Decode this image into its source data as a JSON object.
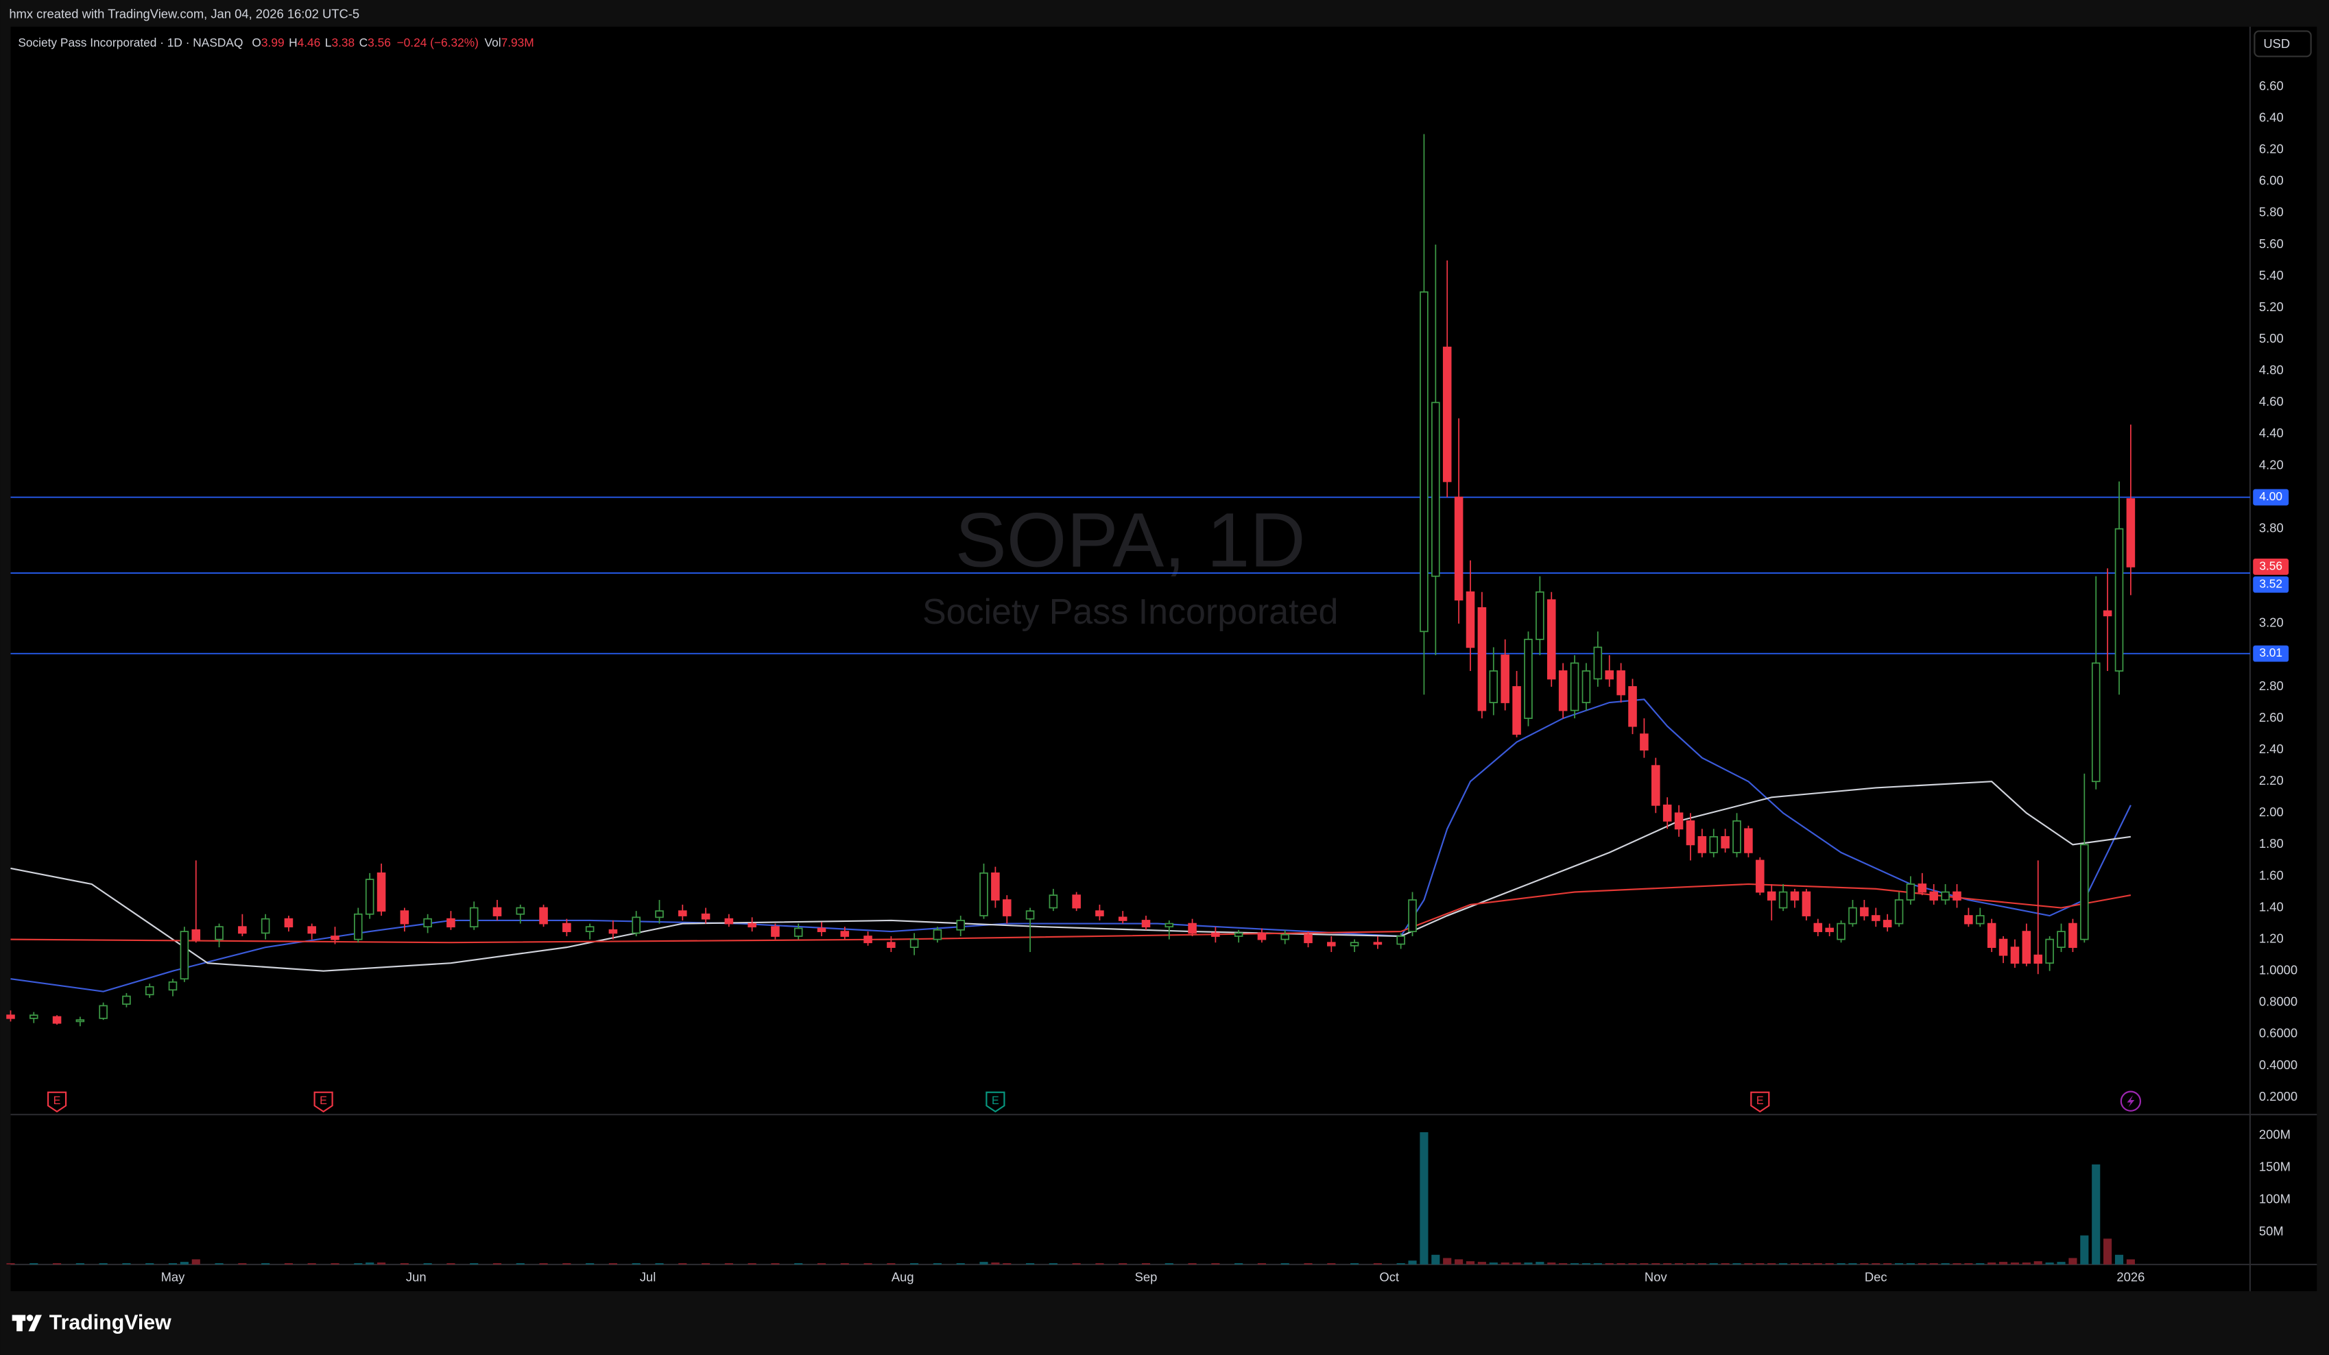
{
  "header": {
    "caption": "hmx created with TradingView.com, Jan 04, 2026 16:02 UTC-5"
  },
  "footer": {
    "brand": "TradingView"
  },
  "currency": "USD",
  "chart_data": {
    "type": "candlestick",
    "watermark": {
      "title": "SOPA, 1D",
      "subtitle": "Society Pass Incorporated"
    },
    "legend": {
      "symbol": "Society Pass Incorporated · 1D · NASDAQ",
      "fields": [
        {
          "label": "O",
          "value": "3.99"
        },
        {
          "label": "H",
          "value": "4.46"
        },
        {
          "label": "L",
          "value": "3.38"
        },
        {
          "label": "C",
          "value": "3.56"
        }
      ],
      "change": "−0.24 (−6.32%)",
      "volume": {
        "label": "Vol",
        "value": "7.93M"
      }
    },
    "up_color": "#3d9a46",
    "down_color": "#f23645",
    "volume_up_color": "#0d5b66",
    "volume_down_color": "#7a1e27",
    "xlim": [
      0,
      193.3
    ],
    "xticks": [
      {
        "value": 14,
        "label": "May"
      },
      {
        "value": 35,
        "label": "Jun"
      },
      {
        "value": 55,
        "label": "Jul"
      },
      {
        "value": 77,
        "label": "Aug"
      },
      {
        "value": 98,
        "label": "Sep"
      },
      {
        "value": 119,
        "label": "Oct"
      },
      {
        "value": 142,
        "label": "Nov"
      },
      {
        "value": 161,
        "label": "Dec"
      },
      {
        "value": 183,
        "label": "2026"
      }
    ],
    "ylim": [
      0.1,
      6.98
    ],
    "yticks": [
      {
        "value": 6.6,
        "label": "6.60"
      },
      {
        "value": 6.4,
        "label": "6.40"
      },
      {
        "value": 6.2,
        "label": "6.20"
      },
      {
        "value": 6.0,
        "label": "6.00"
      },
      {
        "value": 5.8,
        "label": "5.80"
      },
      {
        "value": 5.6,
        "label": "5.60"
      },
      {
        "value": 5.4,
        "label": "5.40"
      },
      {
        "value": 5.2,
        "label": "5.20"
      },
      {
        "value": 5.0,
        "label": "5.00"
      },
      {
        "value": 4.8,
        "label": "4.80"
      },
      {
        "value": 4.6,
        "label": "4.60"
      },
      {
        "value": 4.4,
        "label": "4.40"
      },
      {
        "value": 4.2,
        "label": "4.20"
      },
      {
        "value": 3.8,
        "label": "3.80"
      },
      {
        "value": 3.2,
        "label": "3.20"
      },
      {
        "value": 2.8,
        "label": "2.80"
      },
      {
        "value": 2.6,
        "label": "2.60"
      },
      {
        "value": 2.4,
        "label": "2.40"
      },
      {
        "value": 2.2,
        "label": "2.20"
      },
      {
        "value": 2.0,
        "label": "2.00"
      },
      {
        "value": 1.8,
        "label": "1.80"
      },
      {
        "value": 1.6,
        "label": "1.60"
      },
      {
        "value": 1.4,
        "label": "1.40"
      },
      {
        "value": 1.2,
        "label": "1.20"
      },
      {
        "value": 1.0,
        "label": "1.0000"
      },
      {
        "value": 0.8,
        "label": "0.8000"
      },
      {
        "value": 0.6,
        "label": "0.6000"
      },
      {
        "value": 0.4,
        "label": "0.4000"
      },
      {
        "value": 0.2,
        "label": "0.2000"
      }
    ],
    "vlim": [
      0,
      230000000
    ],
    "vticks": [
      {
        "value": 200000000,
        "label": "200M"
      },
      {
        "value": 150000000,
        "label": "150M"
      },
      {
        "value": 100000000,
        "label": "100M"
      },
      {
        "value": 50000000,
        "label": "50M"
      }
    ],
    "hlines": [
      {
        "value": 4.0,
        "label": "4.00"
      },
      {
        "value": 3.52,
        "label": "3.52"
      },
      {
        "value": 3.01,
        "label": "3.01"
      }
    ],
    "hline_color": "#2962ff",
    "last_price": {
      "value": 3.56,
      "label": "3.56"
    },
    "events": [
      {
        "x": 4,
        "label": "E",
        "color": "#f23645"
      },
      {
        "x": 27,
        "label": "E",
        "color": "#f23645"
      },
      {
        "x": 85,
        "label": "E",
        "color": "#089981"
      },
      {
        "x": 151,
        "label": "E",
        "color": "#f23645"
      },
      {
        "x": 183,
        "color": "#9c27b0"
      }
    ],
    "moving_averages": [
      {
        "color": "#3b5bdb",
        "x": [
          0,
          8,
          14,
          22,
          31,
          38,
          50,
          63,
          76,
          86,
          99,
          112,
          120,
          122,
          124,
          126,
          130,
          134,
          138,
          141,
          143,
          146,
          150,
          153,
          158,
          164,
          169,
          176,
          179,
          183
        ],
        "values": [
          0.95,
          0.87,
          1.0,
          1.15,
          1.25,
          1.32,
          1.32,
          1.3,
          1.25,
          1.3,
          1.3,
          1.25,
          1.22,
          1.45,
          1.9,
          2.2,
          2.45,
          2.6,
          2.7,
          2.72,
          2.55,
          2.35,
          2.2,
          2.0,
          1.75,
          1.55,
          1.45,
          1.35,
          1.45,
          2.05
        ]
      },
      {
        "color": "#d1d4dc",
        "x": [
          0,
          7,
          12,
          17,
          27,
          38,
          48,
          58,
          76,
          89,
          102,
          120,
          124,
          131,
          138,
          144,
          152,
          161,
          171,
          174,
          178,
          183
        ],
        "values": [
          1.65,
          1.55,
          1.3,
          1.05,
          1.0,
          1.05,
          1.15,
          1.3,
          1.32,
          1.28,
          1.25,
          1.22,
          1.35,
          1.55,
          1.75,
          1.95,
          2.1,
          2.16,
          2.2,
          2.0,
          1.8,
          1.85
        ]
      },
      {
        "color": "#e53935",
        "x": [
          0,
          38,
          76,
          120,
          126,
          135,
          150,
          161,
          170,
          177,
          183
        ],
        "values": [
          1.2,
          1.18,
          1.2,
          1.25,
          1.42,
          1.5,
          1.55,
          1.52,
          1.45,
          1.4,
          1.48
        ]
      }
    ],
    "candles": [
      [
        0,
        0.72,
        0.75,
        0.68,
        0.7,
        2000000
      ],
      [
        2,
        0.7,
        0.74,
        0.67,
        0.72,
        2000000
      ],
      [
        4,
        0.71,
        0.72,
        0.66,
        0.67,
        2000000
      ],
      [
        6,
        0.68,
        0.71,
        0.65,
        0.69,
        2000000
      ],
      [
        8,
        0.7,
        0.8,
        0.69,
        0.78,
        2000000
      ],
      [
        10,
        0.79,
        0.86,
        0.77,
        0.84,
        2000000
      ],
      [
        12,
        0.85,
        0.92,
        0.83,
        0.9,
        2000000
      ],
      [
        14,
        0.88,
        0.95,
        0.84,
        0.93,
        2000000
      ],
      [
        15,
        0.95,
        1.28,
        0.93,
        1.25,
        4000000
      ],
      [
        16,
        1.26,
        1.7,
        1.18,
        1.2,
        8000000
      ],
      [
        18,
        1.2,
        1.3,
        1.15,
        1.28,
        2000000
      ],
      [
        20,
        1.28,
        1.36,
        1.22,
        1.24,
        2000000
      ],
      [
        22,
        1.24,
        1.36,
        1.2,
        1.33,
        2000000
      ],
      [
        24,
        1.33,
        1.35,
        1.25,
        1.28,
        2000000
      ],
      [
        26,
        1.28,
        1.3,
        1.2,
        1.24,
        2000000
      ],
      [
        28,
        1.22,
        1.28,
        1.17,
        1.2,
        2000000
      ],
      [
        30,
        1.2,
        1.4,
        1.18,
        1.36,
        2000000
      ],
      [
        31,
        1.36,
        1.62,
        1.33,
        1.58,
        3000000
      ],
      [
        32,
        1.62,
        1.68,
        1.35,
        1.38,
        3000000
      ],
      [
        34,
        1.38,
        1.4,
        1.25,
        1.3,
        2000000
      ],
      [
        36,
        1.28,
        1.36,
        1.24,
        1.33,
        2000000
      ],
      [
        38,
        1.33,
        1.38,
        1.26,
        1.28,
        2000000
      ],
      [
        40,
        1.28,
        1.44,
        1.26,
        1.4,
        2000000
      ],
      [
        42,
        1.4,
        1.45,
        1.32,
        1.35,
        2000000
      ],
      [
        44,
        1.36,
        1.42,
        1.3,
        1.4,
        2000000
      ],
      [
        46,
        1.4,
        1.42,
        1.28,
        1.3,
        2000000
      ],
      [
        48,
        1.3,
        1.33,
        1.22,
        1.25,
        2000000
      ],
      [
        50,
        1.25,
        1.3,
        1.2,
        1.28,
        2000000
      ],
      [
        52,
        1.26,
        1.32,
        1.2,
        1.24,
        2000000
      ],
      [
        54,
        1.24,
        1.38,
        1.22,
        1.34,
        2000000
      ],
      [
        56,
        1.34,
        1.45,
        1.3,
        1.38,
        2000000
      ],
      [
        58,
        1.38,
        1.42,
        1.32,
        1.35,
        2000000
      ],
      [
        60,
        1.36,
        1.4,
        1.3,
        1.33,
        2000000
      ],
      [
        62,
        1.33,
        1.36,
        1.28,
        1.3,
        2000000
      ],
      [
        64,
        1.3,
        1.34,
        1.25,
        1.28,
        2000000
      ],
      [
        66,
        1.28,
        1.3,
        1.2,
        1.22,
        2000000
      ],
      [
        68,
        1.22,
        1.3,
        1.2,
        1.27,
        2000000
      ],
      [
        70,
        1.27,
        1.31,
        1.22,
        1.25,
        2000000
      ],
      [
        72,
        1.25,
        1.28,
        1.2,
        1.22,
        2000000
      ],
      [
        74,
        1.22,
        1.25,
        1.16,
        1.18,
        2000000
      ],
      [
        76,
        1.18,
        1.22,
        1.12,
        1.15,
        2000000
      ],
      [
        78,
        1.15,
        1.24,
        1.1,
        1.2,
        2000000
      ],
      [
        80,
        1.2,
        1.28,
        1.18,
        1.26,
        2000000
      ],
      [
        82,
        1.26,
        1.35,
        1.22,
        1.32,
        2000000
      ],
      [
        84,
        1.35,
        1.68,
        1.33,
        1.62,
        4000000
      ],
      [
        85,
        1.62,
        1.66,
        1.4,
        1.45,
        3000000
      ],
      [
        86,
        1.45,
        1.48,
        1.3,
        1.35,
        2000000
      ],
      [
        88,
        1.33,
        1.4,
        1.12,
        1.38,
        2000000
      ],
      [
        90,
        1.4,
        1.52,
        1.38,
        1.48,
        2000000
      ],
      [
        92,
        1.48,
        1.5,
        1.38,
        1.4,
        2000000
      ],
      [
        94,
        1.38,
        1.42,
        1.32,
        1.35,
        2000000
      ],
      [
        96,
        1.34,
        1.38,
        1.3,
        1.32,
        2000000
      ],
      [
        98,
        1.32,
        1.35,
        1.26,
        1.28,
        2000000
      ],
      [
        100,
        1.28,
        1.32,
        1.2,
        1.3,
        2000000
      ],
      [
        102,
        1.3,
        1.33,
        1.22,
        1.24,
        2000000
      ],
      [
        104,
        1.24,
        1.28,
        1.18,
        1.22,
        2000000
      ],
      [
        106,
        1.22,
        1.26,
        1.18,
        1.24,
        2000000
      ],
      [
        108,
        1.24,
        1.27,
        1.18,
        1.2,
        2000000
      ],
      [
        110,
        1.2,
        1.26,
        1.17,
        1.23,
        2000000
      ],
      [
        112,
        1.23,
        1.25,
        1.15,
        1.18,
        2000000
      ],
      [
        114,
        1.18,
        1.22,
        1.12,
        1.16,
        2000000
      ],
      [
        116,
        1.16,
        1.2,
        1.12,
        1.18,
        2000000
      ],
      [
        118,
        1.18,
        1.22,
        1.14,
        1.17,
        2000000
      ],
      [
        120,
        1.17,
        1.24,
        1.14,
        1.22,
        2000000
      ],
      [
        121,
        1.25,
        1.5,
        1.22,
        1.45,
        6000000
      ],
      [
        122,
        3.15,
        6.3,
        2.75,
        5.3,
        205000000
      ],
      [
        123,
        3.5,
        5.6,
        3.0,
        4.6,
        15000000
      ],
      [
        124,
        4.95,
        5.5,
        4.0,
        4.1,
        10000000
      ],
      [
        125,
        4.0,
        4.5,
        3.2,
        3.35,
        8000000
      ],
      [
        126,
        3.4,
        3.6,
        2.9,
        3.05,
        5000000
      ],
      [
        127,
        3.3,
        3.4,
        2.6,
        2.65,
        4000000
      ],
      [
        128,
        2.7,
        3.05,
        2.62,
        2.9,
        3000000
      ],
      [
        129,
        3.0,
        3.1,
        2.65,
        2.7,
        3000000
      ],
      [
        130,
        2.8,
        2.9,
        2.48,
        2.5,
        3000000
      ],
      [
        131,
        2.6,
        3.15,
        2.55,
        3.1,
        3000000
      ],
      [
        132,
        3.1,
        3.5,
        3.0,
        3.4,
        4000000
      ],
      [
        133,
        3.35,
        3.4,
        2.8,
        2.85,
        3000000
      ],
      [
        134,
        2.9,
        2.95,
        2.6,
        2.65,
        2000000
      ],
      [
        135,
        2.65,
        3.0,
        2.6,
        2.95,
        2000000
      ],
      [
        136,
        2.7,
        2.95,
        2.65,
        2.9,
        2000000
      ],
      [
        137,
        2.85,
        3.15,
        2.8,
        3.05,
        2000000
      ],
      [
        138,
        2.9,
        3.0,
        2.8,
        2.85,
        2000000
      ],
      [
        139,
        2.9,
        2.95,
        2.7,
        2.75,
        2000000
      ],
      [
        140,
        2.8,
        2.85,
        2.5,
        2.55,
        2000000
      ],
      [
        141,
        2.5,
        2.6,
        2.35,
        2.4,
        2000000
      ],
      [
        142,
        2.3,
        2.35,
        2.0,
        2.05,
        2000000
      ],
      [
        143,
        2.05,
        2.1,
        1.9,
        1.95,
        2000000
      ],
      [
        144,
        2.0,
        2.05,
        1.85,
        1.9,
        2000000
      ],
      [
        145,
        1.95,
        2.0,
        1.7,
        1.8,
        2000000
      ],
      [
        146,
        1.85,
        1.9,
        1.72,
        1.75,
        2000000
      ],
      [
        147,
        1.75,
        1.9,
        1.72,
        1.85,
        2000000
      ],
      [
        148,
        1.85,
        1.9,
        1.75,
        1.78,
        2000000
      ],
      [
        149,
        1.75,
        2.0,
        1.72,
        1.95,
        2000000
      ],
      [
        150,
        1.9,
        1.92,
        1.72,
        1.75,
        2000000
      ],
      [
        151,
        1.7,
        1.72,
        1.48,
        1.5,
        2000000
      ],
      [
        152,
        1.5,
        1.55,
        1.32,
        1.45,
        2000000
      ],
      [
        153,
        1.4,
        1.55,
        1.38,
        1.5,
        2000000
      ],
      [
        154,
        1.5,
        1.52,
        1.4,
        1.45,
        2000000
      ],
      [
        155,
        1.5,
        1.52,
        1.32,
        1.35,
        2000000
      ],
      [
        156,
        1.3,
        1.33,
        1.22,
        1.25,
        2000000
      ],
      [
        157,
        1.27,
        1.3,
        1.22,
        1.25,
        2000000
      ],
      [
        158,
        1.2,
        1.32,
        1.18,
        1.3,
        2000000
      ],
      [
        159,
        1.3,
        1.45,
        1.28,
        1.4,
        2000000
      ],
      [
        160,
        1.4,
        1.45,
        1.32,
        1.35,
        2000000
      ],
      [
        161,
        1.35,
        1.4,
        1.28,
        1.32,
        2000000
      ],
      [
        162,
        1.32,
        1.36,
        1.25,
        1.28,
        2000000
      ],
      [
        163,
        1.3,
        1.5,
        1.28,
        1.45,
        2000000
      ],
      [
        164,
        1.45,
        1.6,
        1.42,
        1.55,
        2000000
      ],
      [
        165,
        1.55,
        1.62,
        1.48,
        1.5,
        2000000
      ],
      [
        166,
        1.5,
        1.55,
        1.42,
        1.45,
        2000000
      ],
      [
        167,
        1.45,
        1.55,
        1.42,
        1.5,
        2000000
      ],
      [
        168,
        1.5,
        1.55,
        1.4,
        1.45,
        2000000
      ],
      [
        169,
        1.35,
        1.4,
        1.28,
        1.3,
        2000000
      ],
      [
        170,
        1.3,
        1.4,
        1.28,
        1.35,
        2000000
      ],
      [
        171,
        1.3,
        1.33,
        1.12,
        1.15,
        3000000
      ],
      [
        172,
        1.2,
        1.22,
        1.05,
        1.1,
        4000000
      ],
      [
        173,
        1.15,
        1.2,
        1.02,
        1.05,
        3000000
      ],
      [
        174,
        1.25,
        1.3,
        1.03,
        1.05,
        3000000
      ],
      [
        175,
        1.1,
        1.7,
        0.98,
        1.05,
        5000000
      ],
      [
        176,
        1.05,
        1.22,
        1.0,
        1.2,
        3000000
      ],
      [
        177,
        1.15,
        1.3,
        1.12,
        1.25,
        4000000
      ],
      [
        178,
        1.3,
        1.33,
        1.12,
        1.15,
        10000000
      ],
      [
        179,
        1.2,
        2.25,
        1.18,
        1.8,
        45000000
      ],
      [
        180,
        2.2,
        3.5,
        2.15,
        2.95,
        155000000
      ],
      [
        181,
        3.28,
        3.55,
        2.9,
        3.25,
        40000000
      ],
      [
        182,
        2.9,
        4.1,
        2.75,
        3.8,
        15000000
      ],
      [
        183,
        3.99,
        4.46,
        3.38,
        3.56,
        7930000
      ]
    ]
  }
}
